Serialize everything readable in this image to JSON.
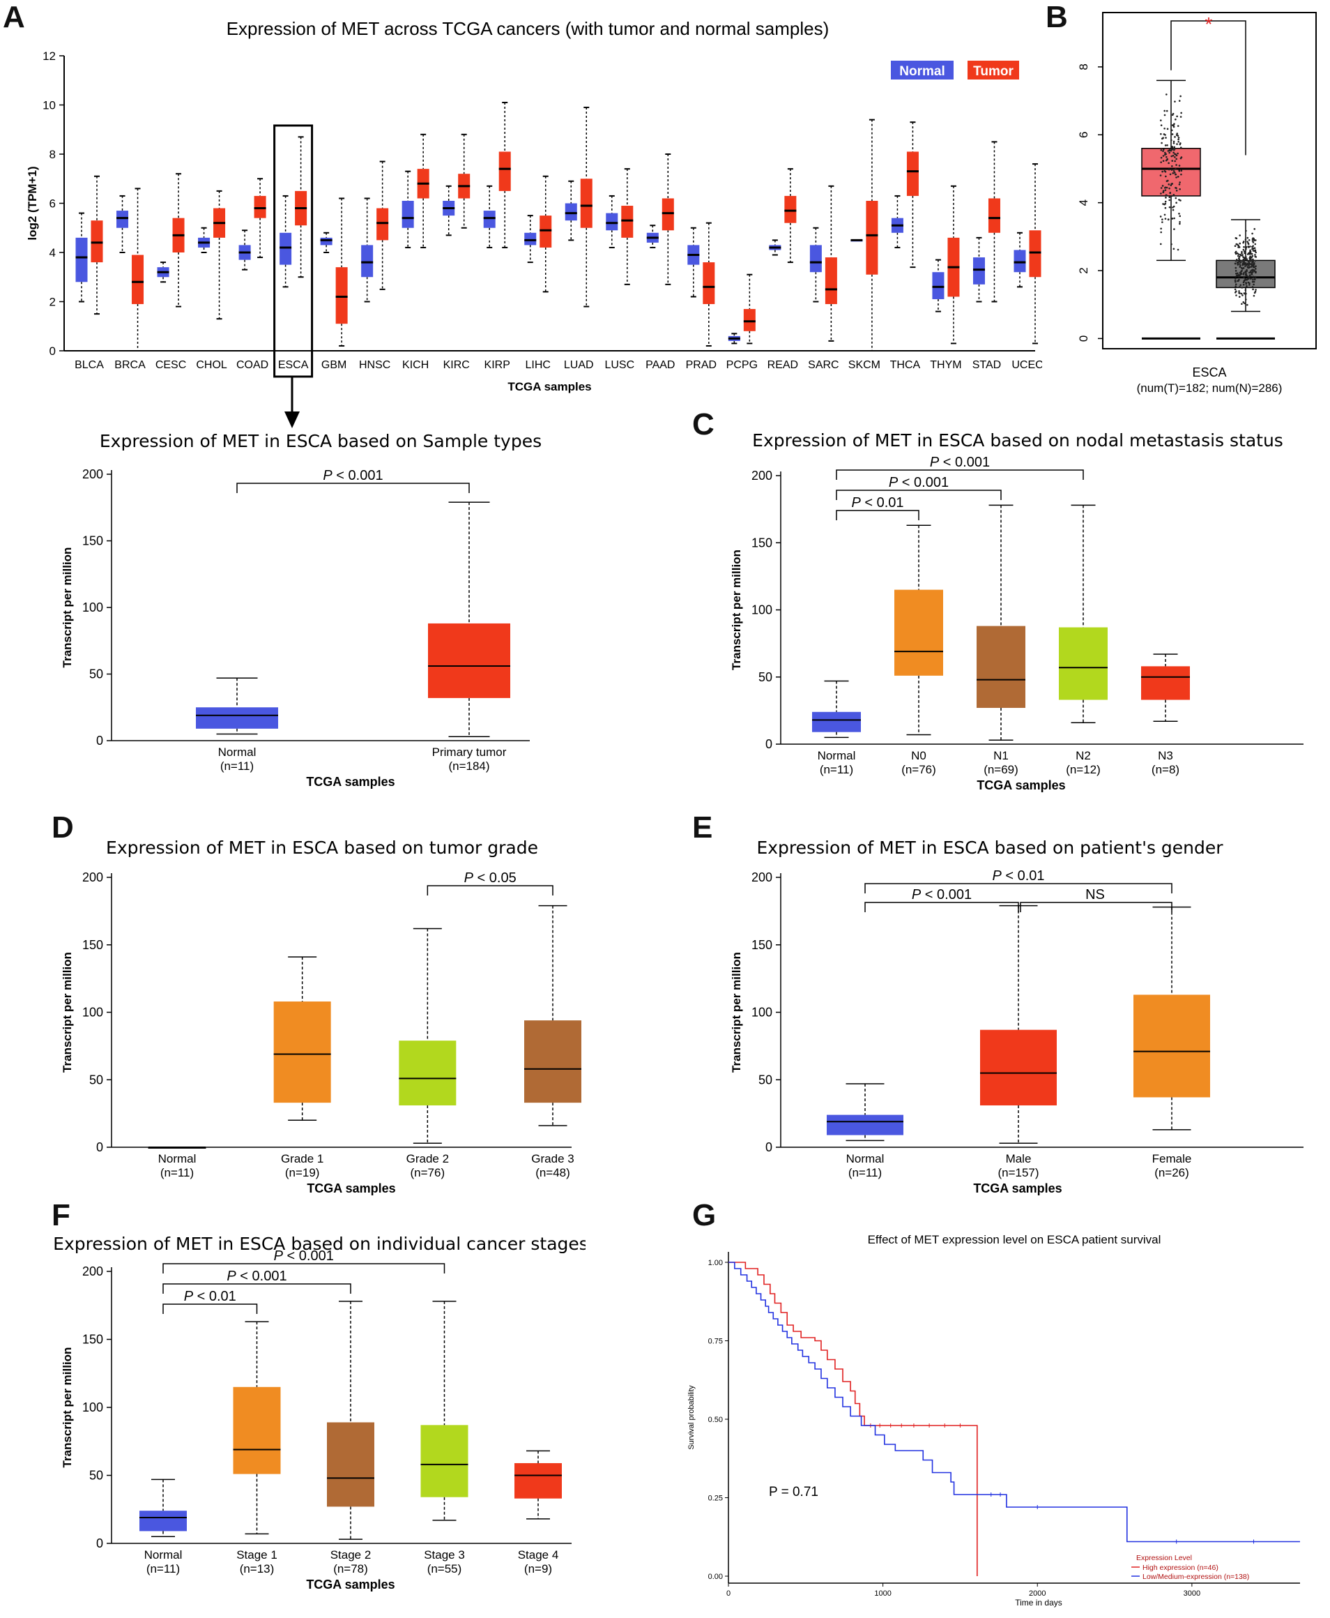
{
  "panel_labels": {
    "A": "A",
    "B": "B",
    "C": "C",
    "D": "D",
    "E": "E",
    "F": "F",
    "G": "G"
  },
  "colors": {
    "normal_blue": "#4a57e0",
    "tumor_red": "#f0391b",
    "orange": "#f08c22",
    "brown": "#b06a35",
    "lime": "#b2d81e",
    "b_tumor": "#f0686e",
    "b_normal": "#7a7a7a",
    "km_high": "#e02020",
    "km_low": "#2030e0"
  },
  "chart_data": [
    {
      "id": "A",
      "type": "box",
      "title": "Expression of MET across TCGA cancers (with tumor and normal samples)",
      "ylabel": "log2 (TPM+1)",
      "xlabel": "TCGA samples",
      "ylim": [
        0,
        12
      ],
      "yticks": [
        0,
        2,
        4,
        6,
        8,
        10,
        12
      ],
      "legend": {
        "normal": "Normal",
        "tumor": "Tumor",
        "position": "top-right"
      },
      "highlight": "ESCA",
      "categories": [
        "BLCA",
        "BRCA",
        "CESC",
        "CHOL",
        "COAD",
        "ESCA",
        "GBM",
        "HNSC",
        "KICH",
        "KIRC",
        "KIRP",
        "LIHC",
        "LUAD",
        "LUSC",
        "PAAD",
        "PRAD",
        "PCPG",
        "READ",
        "SARC",
        "SKCM",
        "THCA",
        "THYM",
        "STAD",
        "UCEC"
      ],
      "series": [
        {
          "name": "Normal",
          "boxes": [
            [
              2.0,
              2.8,
              3.8,
              4.6,
              5.6
            ],
            [
              4.0,
              5.0,
              5.4,
              5.7,
              6.3
            ],
            [
              2.8,
              3.0,
              3.2,
              3.4,
              3.6
            ],
            [
              4.0,
              4.2,
              4.4,
              4.6,
              5.0
            ],
            [
              3.3,
              3.7,
              4.0,
              4.3,
              4.9
            ],
            [
              2.6,
              3.5,
              4.2,
              4.8,
              6.3
            ],
            [
              4.0,
              4.3,
              4.5,
              4.6,
              4.8
            ],
            [
              2.0,
              3.0,
              3.6,
              4.3,
              6.2
            ],
            [
              4.2,
              5.0,
              5.4,
              6.1,
              7.3
            ],
            [
              4.7,
              5.5,
              5.8,
              6.1,
              6.7
            ],
            [
              4.2,
              5.0,
              5.4,
              5.7,
              6.7
            ],
            [
              3.6,
              4.3,
              4.5,
              4.8,
              5.5
            ],
            [
              4.5,
              5.3,
              5.6,
              6.0,
              6.9
            ],
            [
              4.2,
              4.9,
              5.2,
              5.6,
              6.3
            ],
            [
              4.2,
              4.4,
              4.6,
              4.8,
              5.1
            ],
            [
              2.2,
              3.5,
              3.9,
              4.3,
              5.0
            ],
            [
              0.3,
              0.4,
              0.5,
              0.6,
              0.7
            ],
            [
              3.9,
              4.1,
              4.2,
              4.3,
              4.5
            ],
            [
              2.0,
              3.2,
              3.6,
              4.3,
              5.0
            ],
            [
              4.5,
              4.5,
              4.5,
              4.5,
              4.5
            ],
            [
              4.2,
              4.8,
              5.1,
              5.4,
              6.3
            ],
            [
              1.6,
              2.1,
              2.6,
              3.2,
              3.7
            ],
            [
              2.0,
              2.7,
              3.3,
              3.8,
              4.6
            ],
            [
              2.6,
              3.2,
              3.6,
              4.1,
              4.8
            ]
          ]
        },
        {
          "name": "Tumor",
          "boxes": [
            [
              1.5,
              3.6,
              4.4,
              5.3,
              7.1
            ],
            [
              0.0,
              1.9,
              2.8,
              3.9,
              6.6
            ],
            [
              1.8,
              4.0,
              4.7,
              5.4,
              7.2
            ],
            [
              1.3,
              4.6,
              5.2,
              5.8,
              6.5
            ],
            [
              3.8,
              5.4,
              5.8,
              6.3,
              7.0
            ],
            [
              3.0,
              5.1,
              5.8,
              6.5,
              8.7
            ],
            [
              0.2,
              1.1,
              2.2,
              3.4,
              6.2
            ],
            [
              2.5,
              4.5,
              5.2,
              5.8,
              7.7
            ],
            [
              4.2,
              6.2,
              6.8,
              7.4,
              8.8
            ],
            [
              5.0,
              6.2,
              6.7,
              7.2,
              8.8
            ],
            [
              4.2,
              6.5,
              7.4,
              8.1,
              10.1
            ],
            [
              2.4,
              4.2,
              4.9,
              5.5,
              7.1
            ],
            [
              1.8,
              5.0,
              5.9,
              7.0,
              9.9
            ],
            [
              2.7,
              4.6,
              5.3,
              5.9,
              7.4
            ],
            [
              2.7,
              4.9,
              5.6,
              6.2,
              8.0
            ],
            [
              0.2,
              1.9,
              2.6,
              3.6,
              5.2
            ],
            [
              0.3,
              0.8,
              1.2,
              1.7,
              3.1
            ],
            [
              3.6,
              5.2,
              5.7,
              6.3,
              7.4
            ],
            [
              0.4,
              1.9,
              2.5,
              3.8,
              6.7
            ],
            [
              0.0,
              3.1,
              4.7,
              6.1,
              9.4
            ],
            [
              3.4,
              6.3,
              7.3,
              8.1,
              9.3
            ],
            [
              0.3,
              2.2,
              3.4,
              4.6,
              6.7
            ],
            [
              2.0,
              4.8,
              5.4,
              6.2,
              8.5
            ],
            [
              0.3,
              3.0,
              4.0,
              4.9,
              7.6
            ]
          ]
        }
      ]
    },
    {
      "id": "B",
      "type": "box",
      "title": "",
      "category": "ESCA",
      "footnote": "(num(T)=182; num(N)=286)",
      "significance": "*",
      "ylim": [
        -0.3,
        9.6
      ],
      "yticks": [
        0,
        2,
        4,
        6,
        8
      ],
      "series": [
        {
          "name": "Tumor",
          "box": [
            2.3,
            4.2,
            5.0,
            5.6,
            7.6
          ]
        },
        {
          "name": "Normal",
          "box": [
            0.8,
            1.5,
            1.8,
            2.3,
            3.5
          ]
        }
      ]
    },
    {
      "id": "sample_types",
      "type": "box",
      "title": "Expression of MET in ESCA based on Sample types",
      "ylabel": "Transcript per million",
      "xlabel": "TCGA samples",
      "ylim": [
        0,
        200
      ],
      "yticks": [
        0,
        50,
        100,
        150,
        200
      ],
      "categories": [
        "Normal",
        "Primary tumor"
      ],
      "counts": [
        "(n=11)",
        "(n=184)"
      ],
      "boxes": [
        [
          5,
          9,
          19,
          25,
          47
        ],
        [
          3,
          32,
          56,
          88,
          179
        ]
      ],
      "colors": [
        "normal_blue",
        "tumor_red"
      ],
      "brackets": [
        {
          "from": 0,
          "to": 1,
          "level": 0,
          "label": "P < 0.001"
        }
      ]
    },
    {
      "id": "C",
      "type": "box",
      "title": "Expression of MET in ESCA based on nodal metastasis status",
      "ylabel": "Transcript per million",
      "xlabel": "TCGA samples",
      "ylim": [
        0,
        200
      ],
      "yticks": [
        0,
        50,
        100,
        150,
        200
      ],
      "categories": [
        "Normal",
        "N0",
        "N1",
        "N2",
        "N3"
      ],
      "counts": [
        "(n=11)",
        "(n=76)",
        "(n=69)",
        "(n=12)",
        "(n=8)"
      ],
      "boxes": [
        [
          5,
          9,
          18,
          24,
          47
        ],
        [
          7,
          51,
          69,
          115,
          163
        ],
        [
          3,
          27,
          48,
          88,
          178
        ],
        [
          16,
          33,
          57,
          87,
          178
        ],
        [
          17,
          33,
          50,
          58,
          67
        ]
      ],
      "colors": [
        "normal_blue",
        "orange",
        "brown",
        "lime",
        "tumor_red"
      ],
      "brackets": [
        {
          "from": 0,
          "to": 1,
          "level": 0,
          "label": "P < 0.01"
        },
        {
          "from": 0,
          "to": 2,
          "level": 1,
          "label": "P < 0.001"
        },
        {
          "from": 0,
          "to": 3,
          "level": 2,
          "label": "P < 0.001"
        }
      ]
    },
    {
      "id": "D",
      "type": "box",
      "title": "Expression of MET in ESCA based on tumor grade",
      "ylabel": "Transcript per million",
      "xlabel": "TCGA samples",
      "ylim": [
        0,
        200
      ],
      "yticks": [
        0,
        50,
        100,
        150,
        200
      ],
      "categories": [
        "Normal",
        "Grade 1",
        "Grade 2",
        "Grade 3"
      ],
      "counts": [
        "(n=11)",
        "(n=19)",
        "(n=76)",
        "(n=48)"
      ],
      "boxes": [
        [
          0,
          0,
          0,
          0,
          0
        ],
        [
          20,
          33,
          69,
          108,
          141
        ],
        [
          3,
          31,
          51,
          79,
          162
        ],
        [
          16,
          33,
          58,
          94,
          179
        ]
      ],
      "colors": [
        "normal_blue",
        "orange",
        "lime",
        "brown"
      ],
      "brackets": [
        {
          "from": 2,
          "to": 3,
          "level": 0,
          "label": "P < 0.05"
        }
      ]
    },
    {
      "id": "E",
      "type": "box",
      "title": "Expression of MET in ESCA based on patient's gender",
      "ylabel": "Transcript per million",
      "xlabel": "TCGA samples",
      "ylim": [
        0,
        200
      ],
      "yticks": [
        0,
        50,
        100,
        150,
        200
      ],
      "categories": [
        "Normal",
        "Male",
        "Female"
      ],
      "counts": [
        "(n=11)",
        "(n=157)",
        "(n=26)"
      ],
      "boxes": [
        [
          5,
          9,
          19,
          24,
          47
        ],
        [
          3,
          31,
          55,
          87,
          179
        ],
        [
          13,
          37,
          71,
          113,
          178
        ]
      ],
      "colors": [
        "normal_blue",
        "tumor_red",
        "orange"
      ],
      "brackets": [
        {
          "from": 0,
          "to": 1,
          "level": 0,
          "label": "P < 0.001"
        },
        {
          "from": 1,
          "to": 2,
          "level": 0,
          "label": "NS"
        },
        {
          "from": 0,
          "to": 2,
          "level": 1,
          "label": "P < 0.01"
        }
      ]
    },
    {
      "id": "F",
      "type": "box",
      "title": "Expression of MET in ESCA based on individual cancer stages",
      "ylabel": "Transcript per million",
      "xlabel": "TCGA samples",
      "ylim": [
        0,
        200
      ],
      "yticks": [
        0,
        50,
        100,
        150,
        200
      ],
      "categories": [
        "Normal",
        "Stage 1",
        "Stage 2",
        "Stage 3",
        "Stage 4"
      ],
      "counts": [
        "(n=11)",
        "(n=13)",
        "(n=78)",
        "(n=55)",
        "(n=9)"
      ],
      "boxes": [
        [
          5,
          9,
          19,
          24,
          47
        ],
        [
          7,
          51,
          69,
          115,
          163
        ],
        [
          3,
          27,
          48,
          89,
          178
        ],
        [
          17,
          34,
          58,
          87,
          178
        ],
        [
          18,
          33,
          50,
          59,
          68
        ]
      ],
      "colors": [
        "normal_blue",
        "orange",
        "brown",
        "lime",
        "tumor_red"
      ],
      "brackets": [
        {
          "from": 0,
          "to": 1,
          "level": 0,
          "label": "P < 0.01"
        },
        {
          "from": 0,
          "to": 2,
          "level": 1,
          "label": "P < 0.001"
        },
        {
          "from": 0,
          "to": 3,
          "level": 2,
          "label": "P < 0.001"
        }
      ]
    },
    {
      "id": "G",
      "type": "line",
      "title": "Effect of MET expression level on ESCA patient survival",
      "xlabel": "Time in days",
      "ylabel": "Survival probability",
      "xlim": [
        0,
        3700
      ],
      "ylim": [
        0,
        1.05
      ],
      "xticks": [
        0,
        1000,
        2000,
        3000
      ],
      "yticks": [
        "0.00",
        "0.25",
        "0.50",
        "0.75",
        "1.00"
      ],
      "annotation": "P = 0.71",
      "legend_title": "Expression Level",
      "legend_position": "bottom-right",
      "series": [
        {
          "name": "High expression (n=46)",
          "color": "km_high",
          "steps": [
            [
              0,
              1.0
            ],
            [
              110,
              0.98
            ],
            [
              190,
              0.96
            ],
            [
              230,
              0.93
            ],
            [
              270,
              0.9
            ],
            [
              300,
              0.87
            ],
            [
              340,
              0.84
            ],
            [
              380,
              0.8
            ],
            [
              420,
              0.78
            ],
            [
              470,
              0.76
            ],
            [
              560,
              0.75
            ],
            [
              600,
              0.72
            ],
            [
              640,
              0.69
            ],
            [
              690,
              0.66
            ],
            [
              740,
              0.62
            ],
            [
              790,
              0.59
            ],
            [
              820,
              0.55
            ],
            [
              850,
              0.51
            ],
            [
              880,
              0.48
            ],
            [
              1610,
              0.0
            ]
          ]
        },
        {
          "name": "Low/Medium-expression (n=138)",
          "color": "km_low",
          "steps": [
            [
              0,
              1.0
            ],
            [
              40,
              0.98
            ],
            [
              80,
              0.96
            ],
            [
              120,
              0.94
            ],
            [
              150,
              0.92
            ],
            [
              180,
              0.9
            ],
            [
              210,
              0.88
            ],
            [
              240,
              0.86
            ],
            [
              260,
              0.84
            ],
            [
              290,
              0.82
            ],
            [
              320,
              0.8
            ],
            [
              350,
              0.78
            ],
            [
              380,
              0.76
            ],
            [
              410,
              0.74
            ],
            [
              450,
              0.72
            ],
            [
              480,
              0.7
            ],
            [
              520,
              0.68
            ],
            [
              560,
              0.66
            ],
            [
              600,
              0.63
            ],
            [
              640,
              0.6
            ],
            [
              690,
              0.57
            ],
            [
              740,
              0.54
            ],
            [
              790,
              0.51
            ],
            [
              860,
              0.48
            ],
            [
              950,
              0.45
            ],
            [
              1010,
              0.42
            ],
            [
              1080,
              0.4
            ],
            [
              1260,
              0.37
            ],
            [
              1320,
              0.33
            ],
            [
              1440,
              0.3
            ],
            [
              1460,
              0.26
            ],
            [
              1800,
              0.22
            ],
            [
              2580,
              0.11
            ],
            [
              3700,
              0.11
            ]
          ]
        }
      ]
    }
  ]
}
